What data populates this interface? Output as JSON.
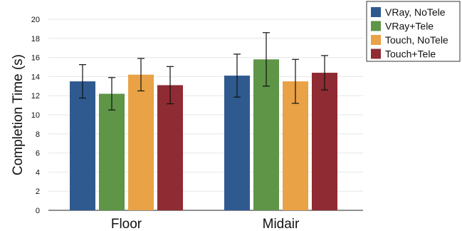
{
  "chart_data": {
    "type": "bar",
    "ylabel": "Completion Time (s)",
    "xlabel": "",
    "ylim": [
      0,
      20
    ],
    "yticks": [
      0,
      2,
      4,
      6,
      8,
      10,
      12,
      14,
      16,
      18,
      20
    ],
    "grid": true,
    "legend_position": "top-right",
    "categories": [
      "Floor",
      "Midair"
    ],
    "series": [
      {
        "name": "VRay, NoTele",
        "color": "#2f5a8f",
        "values": [
          13.5,
          14.1
        ],
        "error": [
          1.75,
          2.25
        ]
      },
      {
        "name": "VRay+Tele",
        "color": "#5e9547",
        "values": [
          12.2,
          15.8
        ],
        "error": [
          1.7,
          2.8
        ]
      },
      {
        "name": "Touch, NoTele",
        "color": "#e9a246",
        "values": [
          14.2,
          13.5
        ],
        "error": [
          1.7,
          2.3
        ]
      },
      {
        "name": "Touch+Tele",
        "color": "#8f2b33",
        "values": [
          13.1,
          14.4
        ],
        "error": [
          1.95,
          1.8
        ]
      }
    ]
  }
}
